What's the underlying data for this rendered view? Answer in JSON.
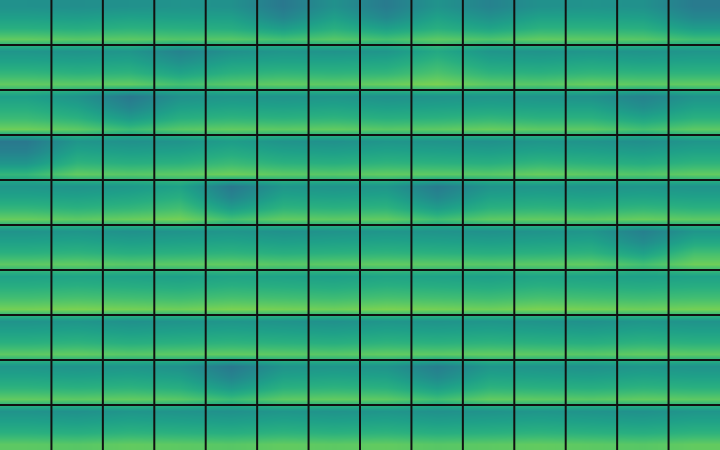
{
  "chart_data": {
    "type": "heatmap",
    "color": "viridis",
    "tick_labels": false,
    "zlim": [
      0,
      1
    ],
    "cells": [
      [
        [
          0.5,
          0.56,
          0.63,
          0.76
        ],
        [
          0.49,
          0.55,
          0.62,
          0.74
        ],
        [
          0.5,
          0.57,
          0.64,
          0.75
        ],
        [
          0.51,
          0.56,
          0.63,
          0.73
        ],
        [
          0.5,
          0.56,
          0.62,
          0.74
        ],
        [
          0.4,
          0.45,
          0.55,
          0.7
        ],
        [
          0.5,
          0.56,
          0.63,
          0.74
        ],
        [
          0.41,
          0.46,
          0.56,
          0.7
        ],
        [
          0.51,
          0.57,
          0.63,
          0.75
        ],
        [
          0.44,
          0.5,
          0.58,
          0.72
        ],
        [
          0.5,
          0.57,
          0.64,
          0.76
        ],
        [
          0.51,
          0.57,
          0.64,
          0.75
        ],
        [
          0.5,
          0.56,
          0.63,
          0.74
        ],
        [
          0.41,
          0.46,
          0.55,
          0.69
        ]
      ],
      [
        [
          0.52,
          0.58,
          0.66,
          0.76
        ],
        [
          0.51,
          0.57,
          0.64,
          0.75
        ],
        [
          0.52,
          0.58,
          0.65,
          0.76
        ],
        [
          0.44,
          0.5,
          0.58,
          0.7
        ],
        [
          0.5,
          0.57,
          0.64,
          0.74
        ],
        [
          0.52,
          0.58,
          0.66,
          0.76
        ],
        [
          0.51,
          0.58,
          0.65,
          0.75
        ],
        [
          0.52,
          0.59,
          0.66,
          0.77
        ],
        [
          0.6,
          0.66,
          0.72,
          0.8
        ],
        [
          0.52,
          0.58,
          0.65,
          0.75
        ],
        [
          0.51,
          0.57,
          0.64,
          0.74
        ],
        [
          0.52,
          0.59,
          0.66,
          0.77
        ],
        [
          0.51,
          0.57,
          0.65,
          0.75
        ],
        [
          0.52,
          0.58,
          0.65,
          0.76
        ]
      ],
      [
        [
          0.56,
          0.62,
          0.68,
          0.78
        ],
        [
          0.51,
          0.57,
          0.64,
          0.75
        ],
        [
          0.4,
          0.45,
          0.54,
          0.68
        ],
        [
          0.5,
          0.56,
          0.63,
          0.74
        ],
        [
          0.52,
          0.58,
          0.65,
          0.76
        ],
        [
          0.51,
          0.57,
          0.64,
          0.75
        ],
        [
          0.52,
          0.58,
          0.65,
          0.76
        ],
        [
          0.5,
          0.56,
          0.63,
          0.74
        ],
        [
          0.51,
          0.57,
          0.64,
          0.75
        ],
        [
          0.52,
          0.58,
          0.66,
          0.77
        ],
        [
          0.51,
          0.57,
          0.64,
          0.75
        ],
        [
          0.5,
          0.57,
          0.64,
          0.75
        ],
        [
          0.44,
          0.49,
          0.58,
          0.7
        ],
        [
          0.51,
          0.57,
          0.64,
          0.75
        ]
      ],
      [
        [
          0.4,
          0.44,
          0.52,
          0.66
        ],
        [
          0.52,
          0.58,
          0.65,
          0.76
        ],
        [
          0.5,
          0.56,
          0.63,
          0.74
        ],
        [
          0.51,
          0.57,
          0.64,
          0.75
        ],
        [
          0.55,
          0.61,
          0.68,
          0.78
        ],
        [
          0.51,
          0.57,
          0.64,
          0.75
        ],
        [
          0.5,
          0.56,
          0.63,
          0.74
        ],
        [
          0.52,
          0.58,
          0.65,
          0.76
        ],
        [
          0.51,
          0.57,
          0.64,
          0.75
        ],
        [
          0.5,
          0.56,
          0.63,
          0.74
        ],
        [
          0.52,
          0.58,
          0.66,
          0.77
        ],
        [
          0.51,
          0.57,
          0.64,
          0.75
        ],
        [
          0.49,
          0.55,
          0.62,
          0.73
        ],
        [
          0.52,
          0.58,
          0.65,
          0.76
        ]
      ],
      [
        [
          0.52,
          0.58,
          0.66,
          0.77
        ],
        [
          0.51,
          0.57,
          0.64,
          0.75
        ],
        [
          0.53,
          0.59,
          0.66,
          0.77
        ],
        [
          0.57,
          0.63,
          0.7,
          0.79
        ],
        [
          0.4,
          0.45,
          0.55,
          0.7
        ],
        [
          0.52,
          0.58,
          0.65,
          0.76
        ],
        [
          0.51,
          0.57,
          0.64,
          0.75
        ],
        [
          0.52,
          0.58,
          0.65,
          0.76
        ],
        [
          0.41,
          0.46,
          0.55,
          0.69
        ],
        [
          0.51,
          0.57,
          0.64,
          0.75
        ],
        [
          0.52,
          0.58,
          0.65,
          0.76
        ],
        [
          0.51,
          0.57,
          0.64,
          0.75
        ],
        [
          0.52,
          0.58,
          0.66,
          0.77
        ],
        [
          0.51,
          0.57,
          0.64,
          0.75
        ]
      ],
      [
        [
          0.51,
          0.57,
          0.64,
          0.75
        ],
        [
          0.52,
          0.58,
          0.65,
          0.76
        ],
        [
          0.5,
          0.56,
          0.63,
          0.74
        ],
        [
          0.51,
          0.57,
          0.64,
          0.75
        ],
        [
          0.52,
          0.58,
          0.65,
          0.76
        ],
        [
          0.5,
          0.56,
          0.63,
          0.74
        ],
        [
          0.51,
          0.57,
          0.64,
          0.75
        ],
        [
          0.52,
          0.58,
          0.65,
          0.76
        ],
        [
          0.51,
          0.57,
          0.64,
          0.75
        ],
        [
          0.5,
          0.56,
          0.63,
          0.74
        ],
        [
          0.51,
          0.57,
          0.64,
          0.75
        ],
        [
          0.52,
          0.58,
          0.65,
          0.76
        ],
        [
          0.43,
          0.48,
          0.57,
          0.7
        ],
        [
          0.52,
          0.6,
          0.7,
          0.78
        ]
      ],
      [
        [
          0.57,
          0.63,
          0.7,
          0.79
        ],
        [
          0.58,
          0.64,
          0.71,
          0.8
        ],
        [
          0.57,
          0.63,
          0.7,
          0.79
        ],
        [
          0.56,
          0.62,
          0.69,
          0.78
        ],
        [
          0.58,
          0.64,
          0.71,
          0.8
        ],
        [
          0.57,
          0.63,
          0.7,
          0.79
        ],
        [
          0.56,
          0.62,
          0.69,
          0.78
        ],
        [
          0.58,
          0.64,
          0.71,
          0.8
        ],
        [
          0.57,
          0.63,
          0.7,
          0.79
        ],
        [
          0.56,
          0.62,
          0.69,
          0.78
        ],
        [
          0.58,
          0.64,
          0.71,
          0.8
        ],
        [
          0.57,
          0.63,
          0.7,
          0.79
        ],
        [
          0.56,
          0.62,
          0.69,
          0.78
        ],
        [
          0.57,
          0.63,
          0.7,
          0.79
        ]
      ],
      [
        [
          0.51,
          0.57,
          0.64,
          0.75
        ],
        [
          0.52,
          0.58,
          0.65,
          0.76
        ],
        [
          0.5,
          0.56,
          0.63,
          0.74
        ],
        [
          0.51,
          0.57,
          0.64,
          0.75
        ],
        [
          0.52,
          0.58,
          0.65,
          0.76
        ],
        [
          0.51,
          0.57,
          0.64,
          0.75
        ],
        [
          0.5,
          0.56,
          0.63,
          0.74
        ],
        [
          0.52,
          0.58,
          0.65,
          0.76
        ],
        [
          0.51,
          0.57,
          0.64,
          0.75
        ],
        [
          0.52,
          0.58,
          0.65,
          0.76
        ],
        [
          0.51,
          0.57,
          0.64,
          0.75
        ],
        [
          0.5,
          0.56,
          0.63,
          0.74
        ],
        [
          0.52,
          0.58,
          0.65,
          0.76
        ],
        [
          0.51,
          0.57,
          0.64,
          0.75
        ]
      ],
      [
        [
          0.52,
          0.58,
          0.65,
          0.76
        ],
        [
          0.51,
          0.57,
          0.64,
          0.75
        ],
        [
          0.52,
          0.58,
          0.65,
          0.76
        ],
        [
          0.5,
          0.56,
          0.63,
          0.74
        ],
        [
          0.4,
          0.45,
          0.54,
          0.68
        ],
        [
          0.51,
          0.57,
          0.64,
          0.75
        ],
        [
          0.52,
          0.58,
          0.65,
          0.76
        ],
        [
          0.51,
          0.57,
          0.64,
          0.75
        ],
        [
          0.42,
          0.47,
          0.56,
          0.69
        ],
        [
          0.52,
          0.58,
          0.65,
          0.76
        ],
        [
          0.51,
          0.57,
          0.64,
          0.75
        ],
        [
          0.5,
          0.56,
          0.63,
          0.74
        ],
        [
          0.52,
          0.58,
          0.65,
          0.76
        ],
        [
          0.51,
          0.57,
          0.64,
          0.75
        ]
      ],
      [
        [
          0.51,
          0.57,
          0.64,
          0.75
        ],
        [
          0.5,
          0.56,
          0.63,
          0.74
        ],
        [
          0.52,
          0.58,
          0.65,
          0.76
        ],
        [
          0.51,
          0.57,
          0.64,
          0.75
        ],
        [
          0.5,
          0.56,
          0.63,
          0.74
        ],
        [
          0.52,
          0.58,
          0.65,
          0.76
        ],
        [
          0.51,
          0.57,
          0.64,
          0.75
        ],
        [
          0.52,
          0.58,
          0.65,
          0.76
        ],
        [
          0.5,
          0.56,
          0.63,
          0.74
        ],
        [
          0.51,
          0.57,
          0.64,
          0.75
        ],
        [
          0.52,
          0.58,
          0.65,
          0.76
        ],
        [
          0.51,
          0.57,
          0.64,
          0.75
        ],
        [
          0.5,
          0.56,
          0.63,
          0.74
        ],
        [
          0.52,
          0.58,
          0.65,
          0.76
        ]
      ]
    ]
  }
}
